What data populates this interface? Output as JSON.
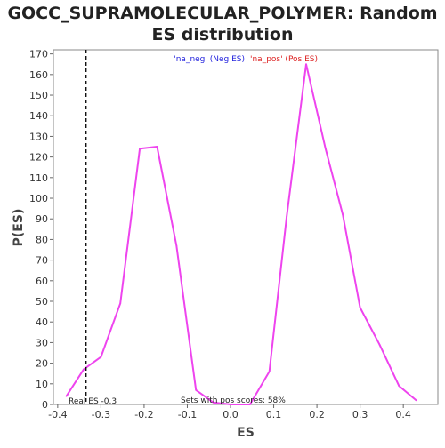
{
  "chart_data": {
    "type": "line",
    "title_lines": [
      "GOCC_SUPRAMOLECULAR_POLYMER: Random",
      "ES distribution"
    ],
    "xlabel": "ES",
    "ylabel": "P(ES)",
    "xlim": [
      -0.41,
      0.48
    ],
    "ylim": [
      0,
      172
    ],
    "xticks": [
      -0.4,
      -0.3,
      -0.2,
      -0.1,
      0.0,
      0.1,
      0.2,
      0.3,
      0.4
    ],
    "xtick_labels": [
      "-0.4",
      "-0.3",
      "-0.2",
      "-0.1",
      "0.0",
      "0.1",
      "0.2",
      "0.3",
      "0.4"
    ],
    "yticks": [
      0,
      10,
      20,
      30,
      40,
      50,
      60,
      70,
      80,
      90,
      100,
      110,
      120,
      130,
      140,
      150,
      160,
      170
    ],
    "ytick_labels": [
      "0",
      "10",
      "20",
      "30",
      "40",
      "50",
      "60",
      "70",
      "80",
      "90",
      "100",
      "110",
      "120",
      "130",
      "140",
      "150",
      "160",
      "170"
    ],
    "grid": false,
    "legend": {
      "placement": "top-center",
      "entries": [
        {
          "label": "'na_neg' (Neg ES)",
          "color": "#2222dd"
        },
        {
          "label": "'na_pos' (Pos ES)",
          "color": "#dd2222"
        }
      ]
    },
    "series": [
      {
        "color": "#ee44ee",
        "x": [
          -0.38,
          -0.34,
          -0.3,
          -0.255,
          -0.21,
          -0.17,
          -0.125,
          -0.08,
          -0.04,
          0.0,
          0.045,
          0.09,
          0.13,
          0.175,
          0.22,
          0.26,
          0.3,
          0.345,
          0.39,
          0.43
        ],
        "y": [
          4,
          17,
          23,
          49,
          124,
          125,
          77,
          7,
          1,
          0,
          0,
          16,
          91,
          165,
          124,
          92,
          47,
          29,
          9,
          2
        ]
      }
    ],
    "real_es": {
      "x": -0.335,
      "label": "Real ES -0.3"
    },
    "annotation": "Sets with pos scores: 58%"
  }
}
